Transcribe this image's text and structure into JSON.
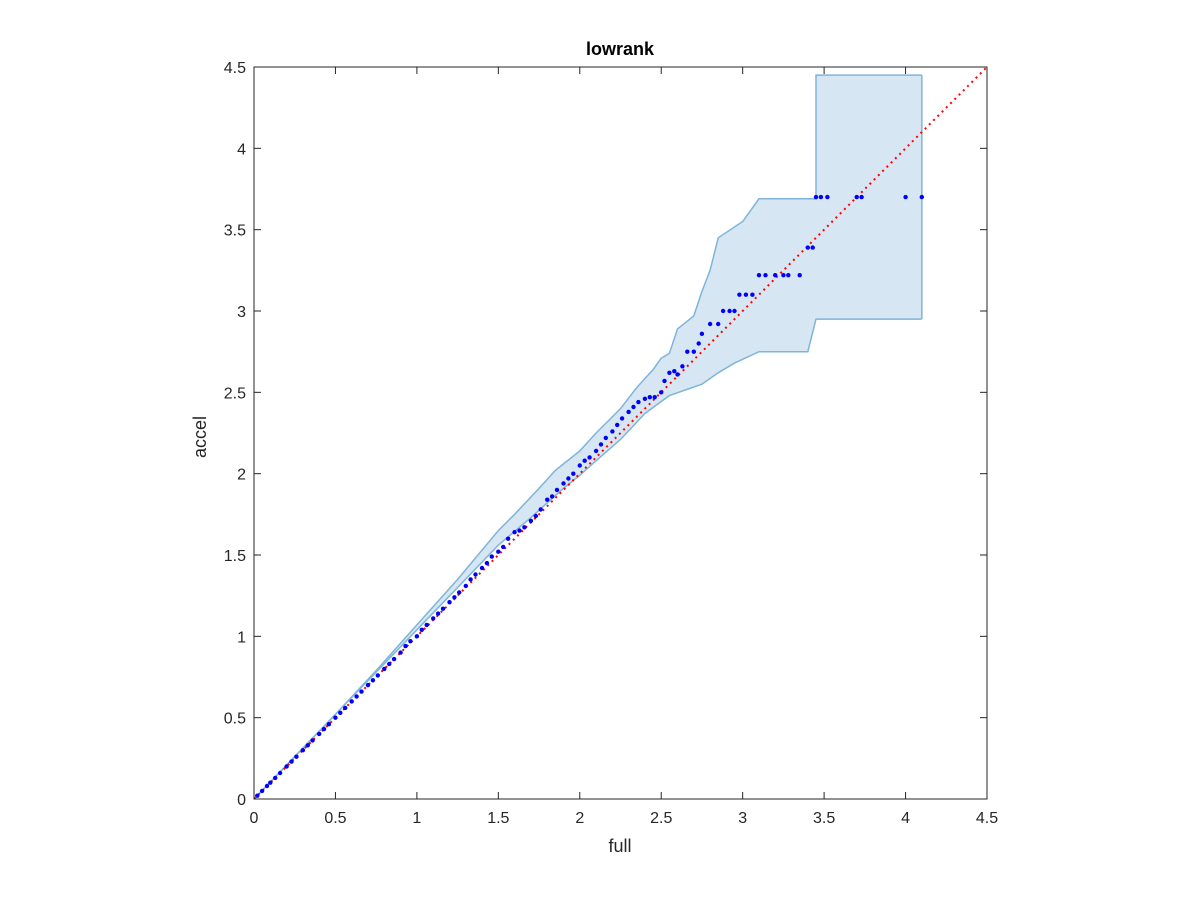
{
  "chart_data": {
    "type": "scatter",
    "title": "lowrank",
    "xlabel": "full",
    "ylabel": "accel",
    "xlim": [
      0,
      4.5
    ],
    "ylim": [
      0,
      4.5
    ],
    "xticks": [
      "0",
      "0.5",
      "1",
      "1.5",
      "2",
      "2.5",
      "3",
      "3.5",
      "4",
      "4.5"
    ],
    "yticks": [
      "0",
      "0.5",
      "1",
      "1.5",
      "2",
      "2.5",
      "3",
      "3.5",
      "4",
      "4.5"
    ],
    "grid": false,
    "legend": "none",
    "reference_line": {
      "style": "dotted",
      "color": "#ff0000",
      "from": [
        0,
        0
      ],
      "to": [
        4.5,
        4.5
      ]
    },
    "band": {
      "fill": "#d6e6f3",
      "stroke": "#7eb5d9",
      "upper": [
        [
          0,
          0
        ],
        [
          0.25,
          0.26
        ],
        [
          0.5,
          0.52
        ],
        [
          0.75,
          0.79
        ],
        [
          1.0,
          1.07
        ],
        [
          1.25,
          1.35
        ],
        [
          1.5,
          1.65
        ],
        [
          1.6,
          1.75
        ],
        [
          1.75,
          1.91
        ],
        [
          1.85,
          2.02
        ],
        [
          1.9,
          2.06
        ],
        [
          2.0,
          2.14
        ],
        [
          2.1,
          2.25
        ],
        [
          2.25,
          2.4
        ],
        [
          2.35,
          2.53
        ],
        [
          2.45,
          2.64
        ],
        [
          2.5,
          2.71
        ],
        [
          2.55,
          2.74
        ],
        [
          2.6,
          2.89
        ],
        [
          2.7,
          2.97
        ],
        [
          2.75,
          3.12
        ],
        [
          2.8,
          3.25
        ],
        [
          2.85,
          3.45
        ],
        [
          3.0,
          3.55
        ],
        [
          3.1,
          3.69
        ],
        [
          3.45,
          3.69
        ],
        [
          3.45,
          3.95
        ],
        [
          3.45,
          4.45
        ],
        [
          4.1,
          4.45
        ]
      ],
      "lower": [
        [
          4.1,
          2.95
        ],
        [
          3.45,
          2.95
        ],
        [
          3.4,
          2.75
        ],
        [
          3.1,
          2.75
        ],
        [
          2.95,
          2.68
        ],
        [
          2.85,
          2.62
        ],
        [
          2.75,
          2.55
        ],
        [
          2.55,
          2.48
        ],
        [
          2.4,
          2.37
        ],
        [
          2.25,
          2.21
        ],
        [
          2.1,
          2.08
        ],
        [
          2.0,
          1.99
        ],
        [
          1.9,
          1.91
        ],
        [
          1.8,
          1.82
        ],
        [
          1.7,
          1.73
        ],
        [
          1.5,
          1.56
        ],
        [
          1.25,
          1.3
        ],
        [
          1.0,
          1.04
        ],
        [
          0.75,
          0.78
        ],
        [
          0.5,
          0.52
        ],
        [
          0.25,
          0.26
        ],
        [
          0,
          0
        ]
      ]
    },
    "series": [
      {
        "color": "#0000ff",
        "points": [
          [
            0.02,
            0.02
          ],
          [
            0.05,
            0.05
          ],
          [
            0.08,
            0.08
          ],
          [
            0.1,
            0.1
          ],
          [
            0.13,
            0.13
          ],
          [
            0.16,
            0.16
          ],
          [
            0.2,
            0.2
          ],
          [
            0.23,
            0.23
          ],
          [
            0.26,
            0.26
          ],
          [
            0.3,
            0.3
          ],
          [
            0.33,
            0.33
          ],
          [
            0.36,
            0.36
          ],
          [
            0.4,
            0.4
          ],
          [
            0.43,
            0.43
          ],
          [
            0.46,
            0.46
          ],
          [
            0.5,
            0.5
          ],
          [
            0.53,
            0.53
          ],
          [
            0.56,
            0.56
          ],
          [
            0.6,
            0.6
          ],
          [
            0.63,
            0.63
          ],
          [
            0.66,
            0.66
          ],
          [
            0.7,
            0.7
          ],
          [
            0.73,
            0.73
          ],
          [
            0.76,
            0.76
          ],
          [
            0.8,
            0.8
          ],
          [
            0.83,
            0.83
          ],
          [
            0.86,
            0.86
          ],
          [
            0.9,
            0.9
          ],
          [
            0.93,
            0.94
          ],
          [
            0.96,
            0.97
          ],
          [
            1.0,
            1.0
          ],
          [
            1.03,
            1.04
          ],
          [
            1.06,
            1.07
          ],
          [
            1.1,
            1.11
          ],
          [
            1.13,
            1.14
          ],
          [
            1.16,
            1.17
          ],
          [
            1.2,
            1.21
          ],
          [
            1.23,
            1.24
          ],
          [
            1.26,
            1.27
          ],
          [
            1.3,
            1.31
          ],
          [
            1.33,
            1.35
          ],
          [
            1.36,
            1.38
          ],
          [
            1.4,
            1.42
          ],
          [
            1.43,
            1.45
          ],
          [
            1.46,
            1.49
          ],
          [
            1.5,
            1.52
          ],
          [
            1.53,
            1.55
          ],
          [
            1.56,
            1.6
          ],
          [
            1.6,
            1.64
          ],
          [
            1.63,
            1.65
          ],
          [
            1.66,
            1.67
          ],
          [
            1.7,
            1.71
          ],
          [
            1.73,
            1.74
          ],
          [
            1.76,
            1.78
          ],
          [
            1.8,
            1.84
          ],
          [
            1.83,
            1.86
          ],
          [
            1.86,
            1.9
          ],
          [
            1.9,
            1.94
          ],
          [
            1.93,
            1.97
          ],
          [
            1.96,
            2.0
          ],
          [
            2.0,
            2.05
          ],
          [
            2.03,
            2.08
          ],
          [
            2.06,
            2.1
          ],
          [
            2.1,
            2.14
          ],
          [
            2.13,
            2.18
          ],
          [
            2.16,
            2.22
          ],
          [
            2.2,
            2.26
          ],
          [
            2.23,
            2.3
          ],
          [
            2.26,
            2.34
          ],
          [
            2.3,
            2.38
          ],
          [
            2.33,
            2.41
          ],
          [
            2.36,
            2.44
          ],
          [
            2.4,
            2.46
          ],
          [
            2.43,
            2.47
          ],
          [
            2.46,
            2.47
          ],
          [
            2.5,
            2.5
          ],
          [
            2.52,
            2.57
          ],
          [
            2.55,
            2.62
          ],
          [
            2.58,
            2.63
          ],
          [
            2.6,
            2.61
          ],
          [
            2.63,
            2.66
          ],
          [
            2.66,
            2.75
          ],
          [
            2.7,
            2.75
          ],
          [
            2.73,
            2.8
          ],
          [
            2.75,
            2.86
          ],
          [
            2.8,
            2.92
          ],
          [
            2.85,
            2.92
          ],
          [
            2.88,
            3.0
          ],
          [
            2.92,
            3.0
          ],
          [
            2.95,
            3.0
          ],
          [
            2.98,
            3.1
          ],
          [
            3.02,
            3.1
          ],
          [
            3.06,
            3.1
          ],
          [
            3.1,
            3.22
          ],
          [
            3.14,
            3.22
          ],
          [
            3.2,
            3.22
          ],
          [
            3.25,
            3.22
          ],
          [
            3.28,
            3.22
          ],
          [
            3.35,
            3.22
          ],
          [
            3.4,
            3.39
          ],
          [
            3.43,
            3.39
          ],
          [
            3.45,
            3.7
          ],
          [
            3.48,
            3.7
          ],
          [
            3.52,
            3.7
          ],
          [
            3.7,
            3.7
          ],
          [
            3.73,
            3.7
          ],
          [
            4.0,
            3.7
          ],
          [
            4.1,
            3.7
          ]
        ]
      }
    ]
  }
}
